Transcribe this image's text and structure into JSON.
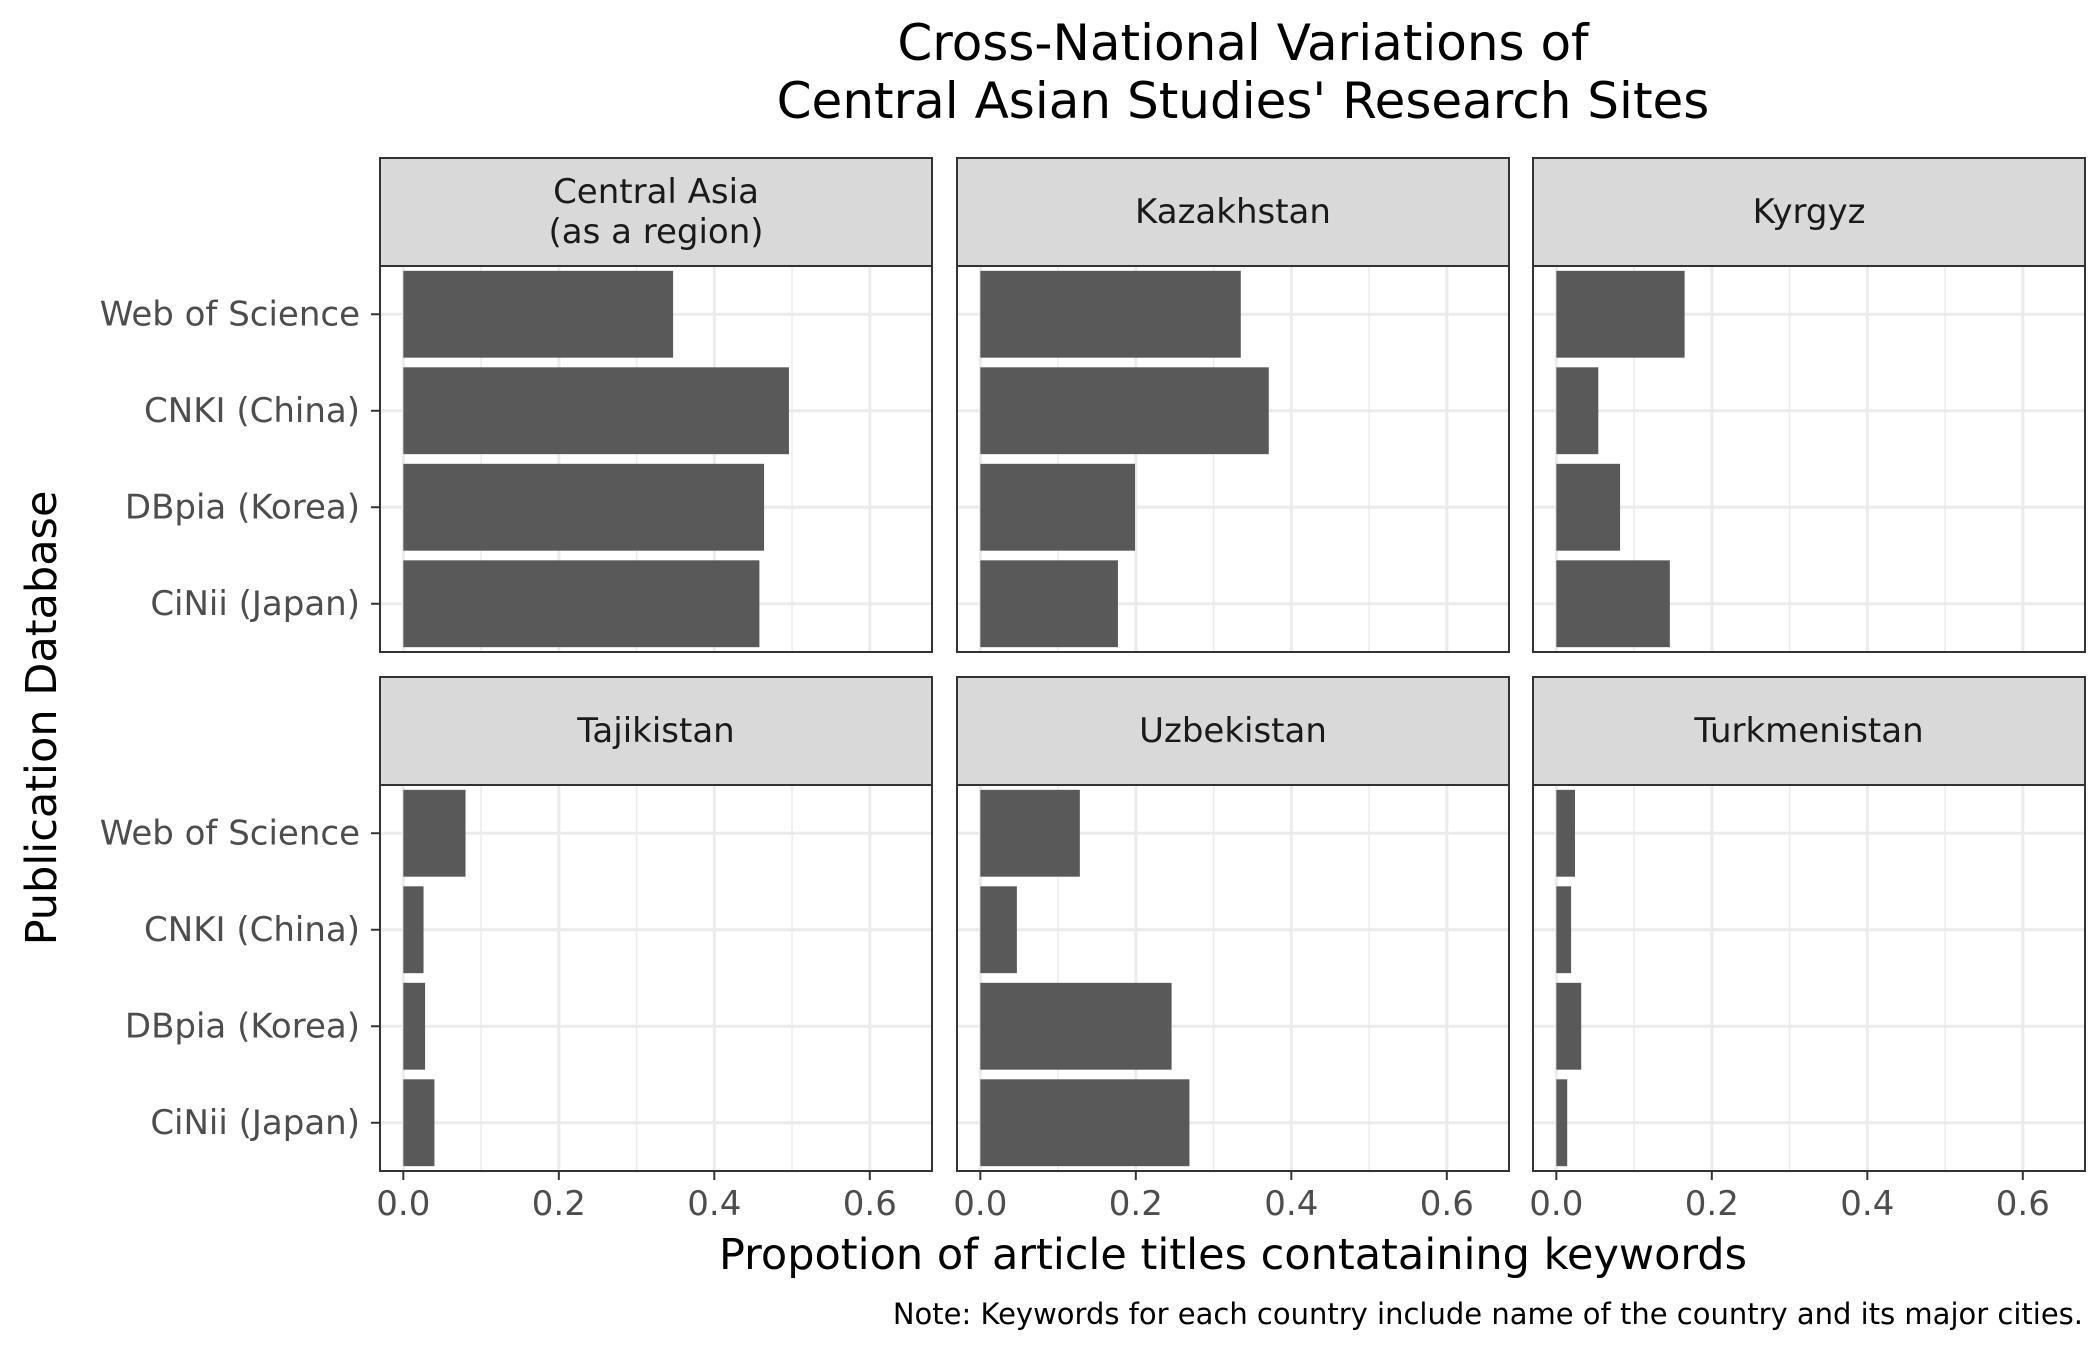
{
  "chart_data": {
    "type": "bar",
    "orientation": "horizontal",
    "title": "Cross-National Variations of\nCentral Asian Studies' Research Sites",
    "xlabel": "Propotion of article titles contataining keywords",
    "ylabel": "Publication Database",
    "caption": "Note: Keywords for each country include name of the country and its major cities.",
    "categories": [
      "Web of Science",
      "CNKI (China)",
      "DBpia (Korea)",
      "CiNii (Japan)"
    ],
    "xlim": [
      -0.03,
      0.68
    ],
    "xticks": [
      0.0,
      0.2,
      0.4,
      0.6
    ],
    "xtick_labels": [
      "0.0",
      "0.2",
      "0.4",
      "0.6"
    ],
    "bar_color": "#595959",
    "strip_fill": "#d9d9d9",
    "grid": true,
    "facets": [
      {
        "name": "Central Asia\n(as a region)",
        "values": [
          0.347,
          0.496,
          0.464,
          0.458
        ]
      },
      {
        "name": "Kazakhstan",
        "values": [
          0.335,
          0.371,
          0.199,
          0.177
        ]
      },
      {
        "name": "Kyrgyz",
        "values": [
          0.165,
          0.054,
          0.082,
          0.146
        ]
      },
      {
        "name": "Tajikistan",
        "values": [
          0.08,
          0.026,
          0.028,
          0.04
        ]
      },
      {
        "name": "Uzbekistan",
        "values": [
          0.128,
          0.047,
          0.246,
          0.269
        ]
      },
      {
        "name": "Turkmenistan",
        "values": [
          0.024,
          0.019,
          0.032,
          0.014
        ]
      }
    ]
  }
}
